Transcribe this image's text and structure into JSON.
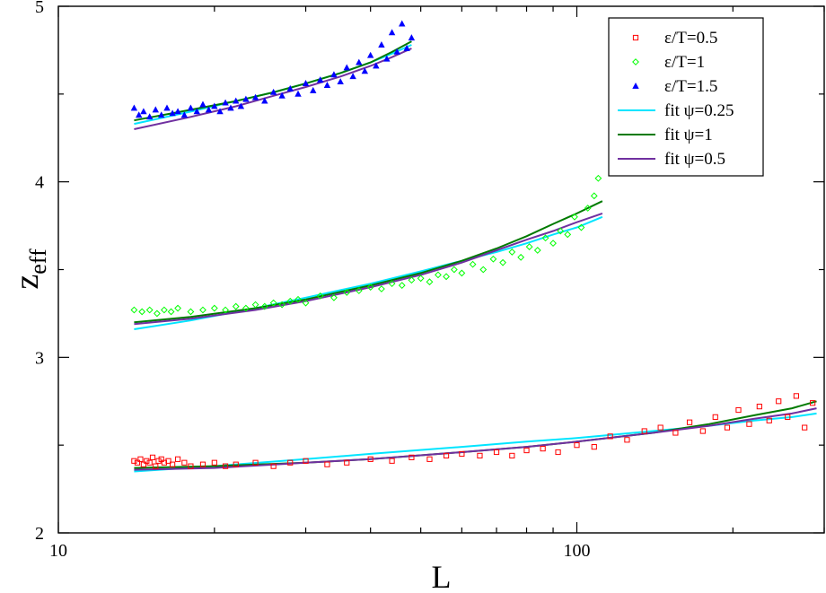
{
  "chart_data": {
    "type": "scatter",
    "title": "",
    "xlabel": "L",
    "ylabel_main": "z",
    "ylabel_sub": "eff",
    "xscale": "log",
    "xlim": [
      10,
      300
    ],
    "ylim": [
      2,
      5
    ],
    "xticks": [
      10,
      100
    ],
    "yticks": [
      2,
      3,
      4,
      5
    ],
    "grid": false,
    "legend_placement": "top-right",
    "series": [
      {
        "name": "ε/T=0.5",
        "kind": "points",
        "marker": "square",
        "color": "#ff0000",
        "x": [
          14.0,
          14.2,
          14.4,
          14.6,
          14.8,
          15.0,
          15.2,
          15.4,
          15.6,
          15.8,
          16.0,
          16.3,
          16.6,
          17.0,
          17.5,
          18,
          19,
          20,
          21,
          22,
          24,
          26,
          28,
          30,
          33,
          36,
          40,
          44,
          48,
          52,
          56,
          60,
          65,
          70,
          75,
          80,
          86,
          92,
          100,
          108,
          116,
          125,
          135,
          145,
          155,
          165,
          175,
          185,
          195,
          205,
          215,
          225,
          235,
          245,
          255,
          265,
          275,
          285
        ],
        "y": [
          2.41,
          2.4,
          2.42,
          2.39,
          2.41,
          2.4,
          2.43,
          2.38,
          2.41,
          2.42,
          2.4,
          2.41,
          2.39,
          2.42,
          2.4,
          2.38,
          2.39,
          2.4,
          2.38,
          2.39,
          2.4,
          2.38,
          2.4,
          2.41,
          2.39,
          2.4,
          2.42,
          2.41,
          2.43,
          2.42,
          2.44,
          2.45,
          2.44,
          2.46,
          2.44,
          2.47,
          2.48,
          2.46,
          2.5,
          2.49,
          2.55,
          2.53,
          2.58,
          2.6,
          2.57,
          2.63,
          2.58,
          2.66,
          2.6,
          2.7,
          2.62,
          2.72,
          2.64,
          2.75,
          2.66,
          2.78,
          2.6,
          2.74
        ]
      },
      {
        "name": "ε/T=1",
        "kind": "points",
        "marker": "diamond",
        "color": "#00ff00",
        "x": [
          14.0,
          14.5,
          15.0,
          15.5,
          16.0,
          16.5,
          17.0,
          18,
          19,
          20,
          21,
          22,
          23,
          24,
          25,
          26,
          27,
          28,
          29,
          30,
          32,
          34,
          36,
          38,
          40,
          42,
          44,
          46,
          48,
          50,
          52,
          54,
          56,
          58,
          60,
          63,
          66,
          69,
          72,
          75,
          78,
          81,
          84,
          87,
          90,
          93,
          96,
          99,
          102,
          105,
          108,
          110
        ],
        "y": [
          3.27,
          3.26,
          3.27,
          3.25,
          3.27,
          3.26,
          3.28,
          3.26,
          3.27,
          3.28,
          3.27,
          3.29,
          3.28,
          3.3,
          3.29,
          3.31,
          3.3,
          3.32,
          3.33,
          3.31,
          3.35,
          3.34,
          3.37,
          3.38,
          3.4,
          3.39,
          3.42,
          3.41,
          3.44,
          3.45,
          3.43,
          3.47,
          3.46,
          3.5,
          3.48,
          3.53,
          3.5,
          3.56,
          3.54,
          3.6,
          3.57,
          3.63,
          3.61,
          3.68,
          3.65,
          3.72,
          3.7,
          3.8,
          3.74,
          3.85,
          3.92,
          4.02
        ]
      },
      {
        "name": "ε/T=1.5",
        "kind": "points",
        "marker": "triangle",
        "color": "#0000ff",
        "x": [
          14.0,
          14.3,
          14.6,
          15.0,
          15.4,
          15.8,
          16.2,
          16.6,
          17.0,
          17.5,
          18,
          18.5,
          19,
          19.5,
          20,
          20.5,
          21,
          21.5,
          22,
          22.5,
          23,
          24,
          25,
          26,
          27,
          28,
          29,
          30,
          31,
          32,
          33,
          34,
          35,
          36,
          37,
          38,
          39,
          40,
          41,
          42,
          43,
          44,
          45,
          46,
          47,
          48
        ],
        "y": [
          4.42,
          4.38,
          4.4,
          4.37,
          4.41,
          4.38,
          4.42,
          4.39,
          4.4,
          4.38,
          4.42,
          4.4,
          4.44,
          4.41,
          4.43,
          4.4,
          4.45,
          4.42,
          4.46,
          4.43,
          4.47,
          4.48,
          4.46,
          4.51,
          4.49,
          4.53,
          4.5,
          4.56,
          4.52,
          4.58,
          4.55,
          4.61,
          4.57,
          4.65,
          4.6,
          4.68,
          4.63,
          4.72,
          4.66,
          4.78,
          4.7,
          4.85,
          4.74,
          4.9,
          4.76,
          4.82
        ]
      },
      {
        "name": "fit ψ=0.25",
        "kind": "fits",
        "color": "#00e5ff",
        "lines": [
          {
            "x": [
              14,
              18,
              22,
              26,
              30,
              35,
              40,
              44,
              48
            ],
            "y": [
              4.33,
              4.4,
              4.46,
              4.51,
              4.56,
              4.62,
              4.68,
              4.73,
              4.78
            ]
          },
          {
            "x": [
              14,
              18,
              24,
              30,
              40,
              50,
              60,
              70,
              80,
              90,
              100,
              112
            ],
            "y": [
              3.16,
              3.21,
              3.28,
              3.34,
              3.42,
              3.49,
              3.55,
              3.6,
              3.65,
              3.7,
              3.74,
              3.8
            ]
          },
          {
            "x": [
              14,
              20,
              30,
              40,
              60,
              80,
              100,
              140,
              180,
              220,
              260,
              290
            ],
            "y": [
              2.35,
              2.38,
              2.42,
              2.45,
              2.49,
              2.52,
              2.54,
              2.58,
              2.61,
              2.64,
              2.66,
              2.68
            ]
          }
        ]
      },
      {
        "name": "fit ψ=1",
        "kind": "fits",
        "color": "#007a00",
        "lines": [
          {
            "x": [
              14,
              18,
              22,
              26,
              30,
              35,
              40,
              44,
              48
            ],
            "y": [
              4.35,
              4.41,
              4.46,
              4.51,
              4.56,
              4.62,
              4.68,
              4.74,
              4.8
            ]
          },
          {
            "x": [
              14,
              18,
              24,
              30,
              40,
              50,
              60,
              70,
              80,
              90,
              100,
              112
            ],
            "y": [
              3.2,
              3.23,
              3.28,
              3.33,
              3.41,
              3.48,
              3.55,
              3.62,
              3.69,
              3.76,
              3.82,
              3.89
            ]
          },
          {
            "x": [
              14,
              20,
              30,
              40,
              60,
              80,
              100,
              140,
              180,
              220,
              260,
              290
            ],
            "y": [
              2.37,
              2.38,
              2.4,
              2.42,
              2.46,
              2.49,
              2.52,
              2.57,
              2.62,
              2.67,
              2.71,
              2.75
            ]
          }
        ]
      },
      {
        "name": "fit ψ=0.5",
        "kind": "fits",
        "color": "#7030a0",
        "lines": [
          {
            "x": [
              14,
              18,
              22,
              26,
              30,
              35,
              40,
              44,
              48
            ],
            "y": [
              4.3,
              4.37,
              4.43,
              4.49,
              4.54,
              4.6,
              4.66,
              4.71,
              4.76
            ]
          },
          {
            "x": [
              14,
              18,
              24,
              30,
              40,
              50,
              60,
              70,
              80,
              90,
              100,
              112
            ],
            "y": [
              3.19,
              3.22,
              3.27,
              3.32,
              3.4,
              3.47,
              3.54,
              3.61,
              3.67,
              3.72,
              3.77,
              3.82
            ]
          },
          {
            "x": [
              14,
              20,
              30,
              40,
              60,
              80,
              100,
              140,
              180,
              220,
              260,
              290
            ],
            "y": [
              2.36,
              2.37,
              2.4,
              2.42,
              2.46,
              2.49,
              2.52,
              2.57,
              2.61,
              2.65,
              2.68,
              2.71
            ]
          }
        ]
      }
    ]
  }
}
